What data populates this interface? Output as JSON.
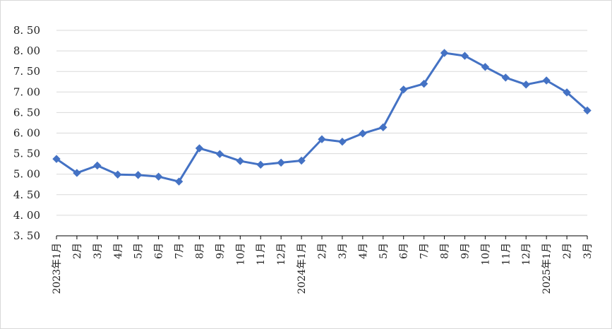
{
  "chart_data": {
    "type": "line",
    "title": "",
    "xlabel": "",
    "ylabel": "",
    "categories": [
      "2023年1月",
      "2月",
      "3月",
      "4月",
      "5月",
      "6月",
      "7月",
      "8月",
      "9月",
      "10月",
      "11月",
      "12月",
      "2024年1月",
      "2月",
      "3月",
      "4月",
      "5月",
      "6月",
      "7月",
      "8月",
      "9月",
      "10月",
      "11月",
      "12月",
      "2025年1月",
      "2月",
      "3月"
    ],
    "series": [
      {
        "values": [
          5.37,
          5.03,
          5.21,
          4.99,
          4.98,
          4.94,
          4.82,
          5.63,
          5.49,
          5.32,
          5.23,
          5.28,
          5.33,
          5.85,
          5.79,
          5.99,
          6.14,
          7.06,
          7.2,
          7.95,
          7.88,
          7.61,
          7.35,
          7.18,
          7.28,
          6.99,
          6.55
        ]
      }
    ],
    "ylim": [
      3.5,
      8.5
    ],
    "yticks": [
      "3. 50",
      "4. 00",
      "4. 50",
      "5. 00",
      "5. 50",
      "6. 00",
      "6. 50",
      "7. 00",
      "7. 50",
      "8. 00",
      "8. 50"
    ],
    "grid": true,
    "legend": "none",
    "line_color": "#4472c4",
    "grid_color": "#d9d9d9",
    "axis_color": "#000000"
  }
}
